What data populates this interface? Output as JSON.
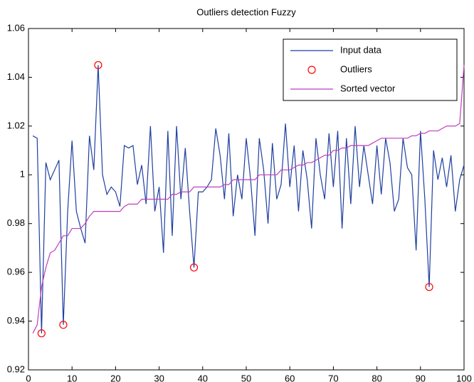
{
  "chart_data": {
    "type": "line",
    "title": "Outliers detection Fuzzy",
    "x": [
      1,
      2,
      3,
      4,
      5,
      6,
      7,
      8,
      9,
      10,
      11,
      12,
      13,
      14,
      15,
      16,
      17,
      18,
      19,
      20,
      21,
      22,
      23,
      24,
      25,
      26,
      27,
      28,
      29,
      30,
      31,
      32,
      33,
      34,
      35,
      36,
      37,
      38,
      39,
      40,
      41,
      42,
      43,
      44,
      45,
      46,
      47,
      48,
      49,
      50,
      51,
      52,
      53,
      54,
      55,
      56,
      57,
      58,
      59,
      60,
      61,
      62,
      63,
      64,
      65,
      66,
      67,
      68,
      69,
      70,
      71,
      72,
      73,
      74,
      75,
      76,
      77,
      78,
      79,
      80,
      81,
      82,
      83,
      84,
      85,
      86,
      87,
      88,
      89,
      90,
      91,
      92,
      93,
      94,
      95,
      96,
      97,
      98,
      99,
      100
    ],
    "series": [
      {
        "name": "Input data",
        "color": "#1f3f9f",
        "style": "line",
        "values": [
          1.016,
          1.015,
          0.935,
          1.005,
          0.998,
          1.002,
          1.006,
          0.9385,
          0.985,
          1.014,
          0.985,
          0.978,
          0.972,
          1.016,
          1.002,
          1.045,
          1.0,
          0.992,
          0.995,
          0.993,
          0.987,
          1.012,
          1.011,
          1.012,
          0.996,
          1.004,
          0.988,
          1.02,
          0.985,
          0.995,
          0.968,
          1.018,
          0.975,
          1.02,
          0.99,
          1.011,
          0.985,
          0.962,
          0.993,
          0.993,
          0.995,
          0.998,
          1.019,
          1.008,
          0.99,
          1.017,
          0.983,
          1.0,
          0.99,
          1.015,
          0.998,
          0.975,
          1.015,
          1.002,
          0.98,
          1.013,
          0.99,
          0.996,
          1.021,
          0.995,
          1.012,
          0.985,
          1.01,
          0.998,
          0.978,
          1.015,
          1.0,
          0.99,
          1.017,
          0.995,
          1.018,
          0.978,
          1.015,
          0.988,
          1.02,
          0.995,
          1.012,
          1.0,
          0.988,
          1.012,
          0.992,
          1.015,
          1.005,
          0.985,
          0.99,
          1.015,
          1.003,
          1.0,
          0.969,
          1.018,
          0.99,
          0.954,
          1.01,
          0.998,
          1.007,
          0.995,
          1.008,
          0.985,
          0.998,
          1.004
        ]
      },
      {
        "name": "Outliers",
        "color": "#ff0000",
        "style": "circle",
        "x": [
          3,
          8,
          16,
          38,
          92
        ],
        "values": [
          0.935,
          0.9385,
          1.045,
          0.962,
          0.954
        ]
      },
      {
        "name": "Sorted vector",
        "color": "#bf3fbf",
        "style": "line",
        "values": [
          0.935,
          0.9385,
          0.954,
          0.962,
          0.968,
          0.969,
          0.972,
          0.975,
          0.975,
          0.978,
          0.978,
          0.978,
          0.98,
          0.983,
          0.985,
          0.985,
          0.985,
          0.985,
          0.985,
          0.985,
          0.985,
          0.987,
          0.988,
          0.988,
          0.988,
          0.99,
          0.99,
          0.99,
          0.99,
          0.99,
          0.99,
          0.99,
          0.992,
          0.992,
          0.993,
          0.993,
          0.993,
          0.995,
          0.995,
          0.995,
          0.995,
          0.995,
          0.995,
          0.995,
          0.996,
          0.996,
          0.998,
          0.998,
          0.998,
          0.998,
          0.998,
          0.998,
          1.0,
          1.0,
          1.0,
          1.0,
          1.0,
          1.002,
          1.002,
          1.002,
          1.003,
          1.004,
          1.004,
          1.005,
          1.005,
          1.006,
          1.007,
          1.008,
          1.008,
          1.01,
          1.01,
          1.011,
          1.011,
          1.012,
          1.012,
          1.012,
          1.012,
          1.012,
          1.013,
          1.014,
          1.015,
          1.015,
          1.015,
          1.015,
          1.015,
          1.015,
          1.015,
          1.016,
          1.016,
          1.017,
          1.017,
          1.018,
          1.018,
          1.018,
          1.019,
          1.02,
          1.02,
          1.02,
          1.021,
          1.045
        ]
      }
    ],
    "xlim": [
      0,
      100
    ],
    "xticks": [
      0,
      10,
      20,
      30,
      40,
      50,
      60,
      70,
      80,
      90,
      100
    ],
    "ylim": [
      0.92,
      1.06
    ],
    "yticks": [
      0.92,
      0.94,
      0.96,
      0.98,
      1,
      1.02,
      1.04,
      1.06
    ],
    "grid": false,
    "legend": "top-right"
  }
}
